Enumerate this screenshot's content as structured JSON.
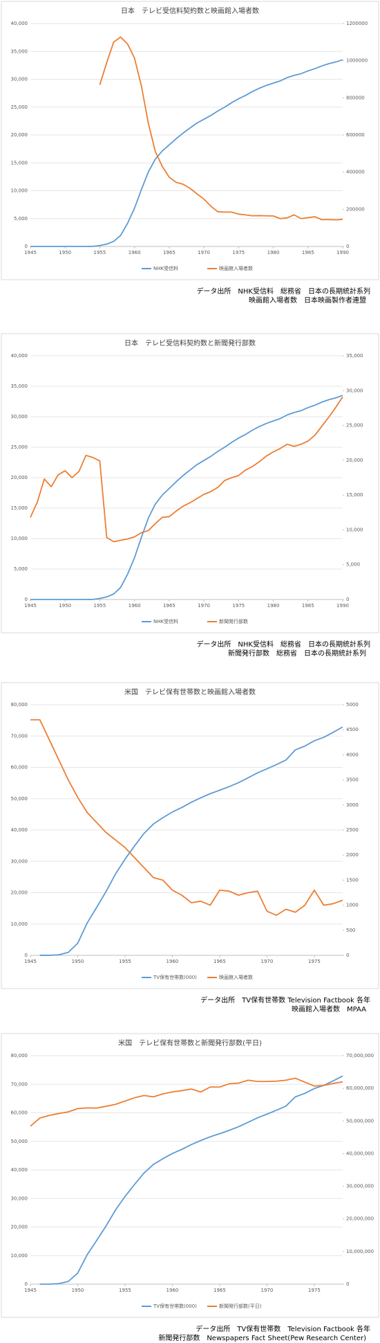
{
  "chart_data": [
    {
      "type": "line",
      "title": "日本　テレビ受信料契約数と映画館入場者数",
      "x": [
        1945,
        1946,
        1947,
        1948,
        1949,
        1950,
        1951,
        1952,
        1953,
        1954,
        1955,
        1956,
        1957,
        1958,
        1959,
        1960,
        1961,
        1962,
        1963,
        1964,
        1965,
        1966,
        1967,
        1968,
        1969,
        1970,
        1971,
        1972,
        1973,
        1974,
        1975,
        1976,
        1977,
        1978,
        1979,
        1980,
        1981,
        1982,
        1983,
        1984,
        1985,
        1986,
        1987,
        1988,
        1989,
        1990
      ],
      "xlim": [
        1945,
        1990
      ],
      "xticks": [
        1945,
        1950,
        1955,
        1960,
        1965,
        1970,
        1975,
        1980,
        1985,
        1990
      ],
      "ylim": [
        0,
        40000
      ],
      "yticks": [
        0,
        {
          "value": 5000,
          "label": "5,000"
        },
        {
          "value": 10000,
          "label": "10,000"
        },
        {
          "value": 15000,
          "label": "15,000"
        },
        {
          "value": 20000,
          "label": "20,000"
        },
        {
          "value": 25000,
          "label": "25,000"
        },
        {
          "value": 30000,
          "label": "30,000"
        },
        {
          "value": 35000,
          "label": "35,000"
        },
        {
          "value": 40000,
          "label": "40,000"
        }
      ],
      "y2lim": [
        0,
        1200000
      ],
      "y2ticks": [
        0,
        200000,
        400000,
        600000,
        800000,
        1000000,
        1200000
      ],
      "series": [
        {
          "name": "NHK受信料",
          "color": "#5b9bd5",
          "values": [
            0,
            0,
            0,
            0,
            0,
            0,
            0,
            0,
            1,
            17,
            166,
            420,
            910,
            1980,
            4150,
            6860,
            10220,
            13380,
            15660,
            17130,
            18220,
            19320,
            20340,
            21260,
            22140,
            22820,
            23500,
            24300,
            25000,
            25800,
            26500,
            27100,
            27800,
            28400,
            28900,
            29300,
            29700,
            30300,
            30700,
            31000,
            31500,
            31900,
            32400,
            32800,
            33100,
            33500
          ]
        },
        {
          "name": "映画館入場者数",
          "color": "#ed7d31",
          "axis": "y2",
          "values": [
            null,
            null,
            null,
            null,
            null,
            null,
            null,
            null,
            null,
            null,
            870000,
            990000,
            1100000,
            1127000,
            1090000,
            1014000,
            863000,
            662000,
            511000,
            431000,
            373000,
            345000,
            335000,
            313000,
            283000,
            255000,
            217000,
            187000,
            185000,
            185000,
            174000,
            170000,
            165000,
            166000,
            165000,
            164000,
            150000,
            154000,
            170000,
            150000,
            155000,
            160000,
            144000,
            145000,
            143000,
            146000
          ]
        }
      ],
      "source": [
        "データ出所　NHK受信料　総務省　日本の長期統計系列",
        "映画館入場者数　日本映画製作者連盟"
      ]
    },
    {
      "type": "line",
      "title": "日本　テレビ受信料契約数と新聞発行部数",
      "x": [
        1945,
        1946,
        1947,
        1948,
        1949,
        1950,
        1951,
        1952,
        1953,
        1954,
        1955,
        1956,
        1957,
        1958,
        1959,
        1960,
        1961,
        1962,
        1963,
        1964,
        1965,
        1966,
        1967,
        1968,
        1969,
        1970,
        1971,
        1972,
        1973,
        1974,
        1975,
        1976,
        1977,
        1978,
        1979,
        1980,
        1981,
        1982,
        1983,
        1984,
        1985,
        1986,
        1987,
        1988,
        1989,
        1990
      ],
      "xlim": [
        1945,
        1990
      ],
      "xticks": [
        1945,
        1950,
        1955,
        1960,
        1965,
        1970,
        1975,
        1980,
        1985,
        1990
      ],
      "ylim": [
        0,
        40000
      ],
      "yticks": [
        0,
        {
          "value": 5000,
          "label": "5,000"
        },
        {
          "value": 10000,
          "label": "10,000"
        },
        {
          "value": 15000,
          "label": "15,000"
        },
        {
          "value": 20000,
          "label": "20,000"
        },
        {
          "value": 25000,
          "label": "25,000"
        },
        {
          "value": 30000,
          "label": "30,000"
        },
        {
          "value": 35000,
          "label": "35,000"
        },
        {
          "value": 40000,
          "label": "40,000"
        }
      ],
      "y2lim": [
        0,
        35000
      ],
      "y2ticks": [
        0,
        {
          "value": 5000,
          "label": "5,000"
        },
        {
          "value": 10000,
          "label": "10,000"
        },
        {
          "value": 15000,
          "label": "15,000"
        },
        {
          "value": 20000,
          "label": "20,000"
        },
        {
          "value": 25000,
          "label": "25,000"
        },
        {
          "value": 30000,
          "label": "30,000"
        },
        {
          "value": 35000,
          "label": "35,000"
        }
      ],
      "series": [
        {
          "name": "NHK受信料",
          "color": "#5b9bd5",
          "values": [
            0,
            0,
            0,
            0,
            0,
            0,
            0,
            0,
            1,
            17,
            166,
            420,
            910,
            1980,
            4150,
            6860,
            10220,
            13380,
            15660,
            17130,
            18220,
            19320,
            20340,
            21260,
            22140,
            22820,
            23500,
            24300,
            25000,
            25800,
            26500,
            27100,
            27800,
            28400,
            28900,
            29300,
            29700,
            30300,
            30700,
            31000,
            31500,
            31900,
            32400,
            32800,
            33100,
            33500
          ]
        },
        {
          "name": "新聞発行部数",
          "color": "#ed7d31",
          "axis": "y2",
          "values": [
            11800,
            14000,
            17300,
            16200,
            17900,
            18500,
            17500,
            18400,
            20700,
            20400,
            19900,
            8900,
            8300,
            8500,
            8700,
            9000,
            9600,
            9900,
            10900,
            11800,
            11900,
            12700,
            13400,
            13900,
            14500,
            15100,
            15500,
            16100,
            17100,
            17500,
            17800,
            18600,
            19100,
            19800,
            20600,
            21200,
            21700,
            22300,
            22000,
            22300,
            22750,
            23600,
            24900,
            26200,
            27600,
            29100
          ]
        }
      ],
      "source": [
        "データ出所　NHK受信料　総務省　日本の長期統計系列",
        "新聞発行部数　総務省　日本の長期統計系列"
      ]
    },
    {
      "type": "line",
      "title": "米国　テレビ保有世帯数と映画館入場者数",
      "x": [
        1945,
        1946,
        1947,
        1948,
        1949,
        1950,
        1951,
        1952,
        1953,
        1954,
        1955,
        1956,
        1957,
        1958,
        1959,
        1960,
        1961,
        1962,
        1963,
        1964,
        1965,
        1966,
        1967,
        1968,
        1969,
        1970,
        1971,
        1972,
        1973,
        1974,
        1975,
        1976,
        1977,
        1978
      ],
      "xlim": [
        1945,
        1978
      ],
      "xticks": [
        1945,
        1950,
        1955,
        1960,
        1965,
        1970,
        1975
      ],
      "ylim": [
        0,
        80000
      ],
      "yticks": [
        0,
        {
          "value": 10000,
          "label": "10,000"
        },
        {
          "value": 20000,
          "label": "20,000"
        },
        {
          "value": 30000,
          "label": "30,000"
        },
        {
          "value": 40000,
          "label": "40,000"
        },
        {
          "value": 50000,
          "label": "50,000"
        },
        {
          "value": 60000,
          "label": "60,000"
        },
        {
          "value": 70000,
          "label": "70,000"
        },
        {
          "value": 80000,
          "label": "80,000"
        }
      ],
      "y2lim": [
        0,
        5000
      ],
      "y2ticks": [
        0,
        500,
        1000,
        1500,
        2000,
        2500,
        3000,
        3500,
        4000,
        4500,
        5000
      ],
      "series": [
        {
          "name": "TV保有世帯数(000)",
          "color": "#5b9bd5",
          "values": [
            null,
            8,
            14,
            172,
            940,
            3875,
            10320,
            15300,
            20400,
            26000,
            30700,
            34900,
            38900,
            41920,
            43950,
            45750,
            47200,
            48855,
            50300,
            51600,
            52700,
            53850,
            55130,
            56670,
            58250,
            59550,
            60900,
            62350,
            65600,
            66800,
            68500,
            69600,
            71200,
            72900
          ]
        },
        {
          "name": "映画館入場者数",
          "color": "#ed7d31",
          "axis": "y2",
          "values": [
            4700,
            4700,
            4300,
            3900,
            3500,
            3150,
            2850,
            2650,
            2450,
            2300,
            2150,
            1950,
            1750,
            1550,
            1500,
            1300,
            1200,
            1050,
            1080,
            1000,
            1300,
            1280,
            1200,
            1250,
            1280,
            880,
            800,
            920,
            860,
            1000,
            1300,
            1000,
            1030,
            1100
          ]
        }
      ],
      "source": [
        "データ出所　TV保有世帯数 Television Factbook 各年",
        "映画館入場者数　MPAA"
      ]
    },
    {
      "type": "line",
      "title": "米国　テレビ保有世帯数と新聞発行部数(平日)",
      "x": [
        1945,
        1946,
        1947,
        1948,
        1949,
        1950,
        1951,
        1952,
        1953,
        1954,
        1955,
        1956,
        1957,
        1958,
        1959,
        1960,
        1961,
        1962,
        1963,
        1964,
        1965,
        1966,
        1967,
        1968,
        1969,
        1970,
        1971,
        1972,
        1973,
        1974,
        1975,
        1976,
        1977,
        1978
      ],
      "xlim": [
        1945,
        1978
      ],
      "xticks": [
        1945,
        1950,
        1955,
        1960,
        1965,
        1970,
        1975
      ],
      "ylim": [
        0,
        80000
      ],
      "yticks": [
        0,
        {
          "value": 10000,
          "label": "10,000"
        },
        {
          "value": 20000,
          "label": "20,000"
        },
        {
          "value": 30000,
          "label": "30,000"
        },
        {
          "value": 40000,
          "label": "40,000"
        },
        {
          "value": 50000,
          "label": "50,000"
        },
        {
          "value": 60000,
          "label": "60,000"
        },
        {
          "value": 70000,
          "label": "70,000"
        },
        {
          "value": 80000,
          "label": "80,000"
        }
      ],
      "y2lim": [
        0,
        70000000
      ],
      "y2ticks": [
        0,
        {
          "value": 10000000,
          "label": "10,000,000"
        },
        {
          "value": 20000000,
          "label": "20,000,000"
        },
        {
          "value": 30000000,
          "label": "30,000,000"
        },
        {
          "value": 40000000,
          "label": "40,000,000"
        },
        {
          "value": 50000000,
          "label": "50,000,000"
        },
        {
          "value": 60000000,
          "label": "60,000,000"
        },
        {
          "value": 70000000,
          "label": "70,000,000"
        }
      ],
      "series": [
        {
          "name": "TV保有世帯数(000)",
          "color": "#5b9bd5",
          "values": [
            null,
            8,
            14,
            172,
            940,
            3875,
            10320,
            15300,
            20400,
            26000,
            30700,
            34900,
            38900,
            41920,
            43950,
            45750,
            47200,
            48855,
            50300,
            51600,
            52700,
            53850,
            55130,
            56670,
            58250,
            59550,
            60900,
            62350,
            65600,
            66800,
            68500,
            69600,
            71200,
            72900
          ]
        },
        {
          "name": "新聞発行部数(平日)",
          "color": "#ed7d31",
          "axis": "y2",
          "values": [
            48400000,
            50900000,
            51700000,
            52300000,
            52800000,
            53800000,
            54000000,
            53950000,
            54500000,
            55100000,
            56100000,
            57100000,
            57800000,
            57400000,
            58300000,
            58900000,
            59300000,
            59800000,
            58900000,
            60400000,
            60400000,
            61400000,
            61600000,
            62500000,
            62100000,
            62100000,
            62200000,
            62500000,
            63100000,
            61900000,
            60700000,
            60900000,
            61500000,
            62000000
          ]
        }
      ],
      "source": [
        "データ出所　TV保有世帯数　Television Factbook 各年",
        "新聞発行部数　Newspapers Fact Sheet(Pew Research Center)"
      ]
    }
  ]
}
